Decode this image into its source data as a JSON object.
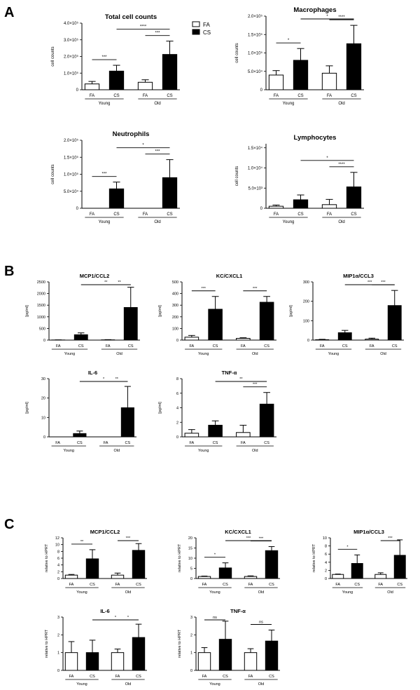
{
  "panels": [
    {
      "letter": "A"
    },
    {
      "letter": "B"
    },
    {
      "letter": "C"
    }
  ],
  "legend": {
    "items": [
      {
        "label": "FA",
        "fill": "#ffffff"
      },
      {
        "label": "CS",
        "fill": "#000000"
      }
    ]
  },
  "colors": {
    "fa": "#ffffff",
    "cs": "#000000",
    "axis": "#000000"
  },
  "chart_data": [
    {
      "type": "bar",
      "panel": "A",
      "title": "Total cell counts",
      "ylabel": "cell counts",
      "categories": [
        "FA",
        "CS",
        "FA",
        "CS"
      ],
      "groups": [
        "Young",
        "Old"
      ],
      "ylim": [
        0,
        400000
      ],
      "ticks": [
        0,
        100000,
        200000,
        300000,
        400000
      ],
      "tick_labels": [
        "0",
        "1.0×10⁵",
        "2.0×10⁵",
        "3.0×10⁵",
        "4.0×10⁵"
      ],
      "values": [
        35000,
        112000,
        45000,
        212000
      ],
      "errors": [
        15000,
        35000,
        15000,
        80000
      ],
      "brackets": [
        {
          "a": 0,
          "b": 1,
          "label": "***"
        },
        {
          "a": 1,
          "b": 3,
          "label": "****"
        },
        {
          "a": 2,
          "b": 3,
          "label": "***"
        }
      ]
    },
    {
      "type": "bar",
      "panel": "A",
      "title": "Macrophages",
      "ylabel": "cell counts",
      "categories": [
        "FA",
        "CS",
        "FA",
        "CS"
      ],
      "groups": [
        "Young",
        "Old"
      ],
      "ylim": [
        0,
        200000
      ],
      "ticks": [
        0,
        50000,
        100000,
        150000,
        200000
      ],
      "tick_labels": [
        "0",
        "5.0×10⁴",
        "1.0×10⁵",
        "1.5×10⁵",
        "2.0×10⁵"
      ],
      "values": [
        40000,
        80000,
        45000,
        125000
      ],
      "errors": [
        12000,
        32000,
        20000,
        50000
      ],
      "brackets": [
        {
          "a": 0,
          "b": 1,
          "label": "*"
        },
        {
          "a": 1,
          "b": 3,
          "label": "*"
        },
        {
          "a": 2,
          "b": 3,
          "label": "****"
        }
      ]
    },
    {
      "type": "bar",
      "panel": "A",
      "title": "Neutrophils",
      "ylabel": "cell counts",
      "categories": [
        "FA",
        "CS",
        "FA",
        "CS"
      ],
      "groups": [
        "Young",
        "Old"
      ],
      "ylim": [
        0,
        200000
      ],
      "ticks": [
        0,
        50000,
        100000,
        150000,
        200000
      ],
      "tick_labels": [
        "0",
        "5.0×10⁴",
        "1.0×10⁵",
        "1.5×10⁵",
        "2.0×10⁵"
      ],
      "values": [
        0,
        57000,
        0,
        90000
      ],
      "errors": [
        0,
        20000,
        0,
        53000
      ],
      "brackets": [
        {
          "a": 0,
          "b": 1,
          "label": "***"
        },
        {
          "a": 1,
          "b": 3,
          "label": "*"
        },
        {
          "a": 2,
          "b": 3,
          "label": "***"
        }
      ]
    },
    {
      "type": "bar",
      "panel": "A",
      "title": "Lymphocytes",
      "ylabel": "cell counts",
      "categories": [
        "FA",
        "CS",
        "FA",
        "CS"
      ],
      "groups": [
        "Young",
        "Old"
      ],
      "ylim": [
        0,
        16000
      ],
      "ticks": [
        0,
        5000,
        10000,
        15000
      ],
      "tick_labels": [
        "0",
        "5.0×10³",
        "1.0×10⁴",
        "1.5×10⁴"
      ],
      "values": [
        500,
        2100,
        900,
        5300
      ],
      "errors": [
        300,
        1200,
        1300,
        3600
      ],
      "brackets": [
        {
          "a": 1,
          "b": 3,
          "label": "*"
        },
        {
          "a": 2,
          "b": 3,
          "label": "****"
        }
      ]
    },
    {
      "type": "bar",
      "panel": "B",
      "title": "MCP1/CCL2",
      "ylabel": "[pg/ml]",
      "categories": [
        "FA",
        "CS",
        "FA",
        "CS"
      ],
      "groups": [
        "Young",
        "Old"
      ],
      "ylim": [
        0,
        2500
      ],
      "ticks": [
        0,
        500,
        1000,
        1500,
        2000,
        2500
      ],
      "tick_labels": [
        "0",
        "500",
        "1000",
        "1500",
        "2000",
        "2500"
      ],
      "values": [
        5,
        230,
        10,
        1400
      ],
      "errors": [
        5,
        80,
        10,
        870
      ],
      "brackets": [
        {
          "a": 1,
          "b": 3,
          "label": "**"
        },
        {
          "a": 2,
          "b": 3,
          "label": "**"
        }
      ]
    },
    {
      "type": "bar",
      "panel": "B",
      "title": "KC/CXCL1",
      "ylabel": "[pg/ml]",
      "categories": [
        "FA",
        "CS",
        "FA",
        "CS"
      ],
      "groups": [
        "Young",
        "Old"
      ],
      "ylim": [
        0,
        500
      ],
      "ticks": [
        0,
        100,
        200,
        300,
        400,
        500
      ],
      "tick_labels": [
        "0",
        "100",
        "200",
        "300",
        "400",
        "500"
      ],
      "values": [
        25,
        265,
        15,
        325
      ],
      "errors": [
        15,
        110,
        5,
        50
      ],
      "brackets": [
        {
          "a": 0,
          "b": 1,
          "label": "***"
        },
        {
          "a": 2,
          "b": 3,
          "label": "***"
        }
      ]
    },
    {
      "type": "bar",
      "panel": "B",
      "title": "MIP1α/CCL3",
      "ylabel": "[pg/ml]",
      "categories": [
        "FA",
        "CS",
        "FA",
        "CS"
      ],
      "groups": [
        "Young",
        "Old"
      ],
      "ylim": [
        0,
        300
      ],
      "ticks": [
        0,
        100,
        200,
        300
      ],
      "tick_labels": [
        "0",
        "100",
        "200",
        "300"
      ],
      "values": [
        2,
        38,
        5,
        178
      ],
      "errors": [
        2,
        12,
        5,
        78
      ],
      "brackets": [
        {
          "a": 1,
          "b": 3,
          "label": "***"
        },
        {
          "a": 2,
          "b": 3,
          "label": "***"
        }
      ]
    },
    {
      "type": "bar",
      "panel": "B",
      "title": "IL-6",
      "ylabel": "[pg/ml]",
      "categories": [
        "FA",
        "CS",
        "FA",
        "CS"
      ],
      "groups": [
        "Young",
        "Old"
      ],
      "ylim": [
        0,
        30
      ],
      "ticks": [
        0,
        10,
        20,
        30
      ],
      "tick_labels": [
        "0",
        "10",
        "20",
        "30"
      ],
      "values": [
        0,
        1.7,
        0,
        15
      ],
      "errors": [
        0,
        1.3,
        0,
        11
      ],
      "brackets": [
        {
          "a": 1,
          "b": 3,
          "label": "*"
        },
        {
          "a": 2,
          "b": 3,
          "label": "**"
        }
      ]
    },
    {
      "type": "bar",
      "panel": "B",
      "title": "TNF-α",
      "ylabel": "[pg/ml]",
      "categories": [
        "FA",
        "CS",
        "FA",
        "CS"
      ],
      "groups": [
        "Young",
        "Old"
      ],
      "ylim": [
        0,
        8
      ],
      "ticks": [
        0,
        2,
        4,
        6,
        8
      ],
      "tick_labels": [
        "0",
        "2",
        "4",
        "6",
        "8"
      ],
      "values": [
        0.5,
        1.6,
        0.6,
        4.5
      ],
      "errors": [
        0.5,
        0.6,
        1.0,
        1.6
      ],
      "brackets": [
        {
          "a": 1,
          "b": 3,
          "label": "**"
        },
        {
          "a": 2,
          "b": 3,
          "label": "***"
        }
      ]
    },
    {
      "type": "bar",
      "panel": "C",
      "title": "MCP1/CCL2",
      "ylabel": "relative to HPRT",
      "categories": [
        "FA",
        "CS",
        "FA",
        "CS"
      ],
      "groups": [
        "Young",
        "Old"
      ],
      "ylim": [
        0,
        12
      ],
      "ticks": [
        0,
        2,
        4,
        6,
        8,
        10,
        12
      ],
      "tick_labels": [
        "0",
        "2",
        "4",
        "6",
        "8",
        "10",
        "12"
      ],
      "values": [
        1,
        5.8,
        1,
        8.3
      ],
      "errors": [
        0.2,
        2.7,
        0.6,
        2.0
      ],
      "brackets": [
        {
          "a": 0,
          "b": 1,
          "label": "**"
        },
        {
          "a": 2,
          "b": 3,
          "label": "***"
        }
      ]
    },
    {
      "type": "bar",
      "panel": "C",
      "title": "KC/CXCL1",
      "ylabel": "relative to HPRT",
      "categories": [
        "FA",
        "CS",
        "FA",
        "CS"
      ],
      "groups": [
        "Young",
        "Old"
      ],
      "ylim": [
        0,
        20
      ],
      "ticks": [
        0,
        5,
        10,
        15,
        20
      ],
      "tick_labels": [
        "0",
        "5",
        "10",
        "15",
        "20"
      ],
      "values": [
        1,
        5.2,
        1,
        13.7
      ],
      "errors": [
        0.2,
        2.5,
        0.3,
        2.0
      ],
      "brackets": [
        {
          "a": 0,
          "b": 1,
          "label": "*"
        },
        {
          "a": 1,
          "b": 3,
          "label": "***"
        },
        {
          "a": 2,
          "b": 3,
          "label": "***"
        }
      ]
    },
    {
      "type": "bar",
      "panel": "C",
      "title": "MIP1α/CCL3",
      "ylabel": "relative to HPRT",
      "categories": [
        "FA",
        "CS",
        "FA",
        "CS"
      ],
      "groups": [
        "Young",
        "Old"
      ],
      "ylim": [
        0,
        10
      ],
      "ticks": [
        0,
        2,
        4,
        6,
        8,
        10
      ],
      "tick_labels": [
        "0",
        "2",
        "4",
        "6",
        "8",
        "10"
      ],
      "values": [
        1,
        3.7,
        1,
        5.7
      ],
      "errors": [
        0.1,
        2.1,
        0.4,
        3.8
      ],
      "brackets": [
        {
          "a": 0,
          "b": 1,
          "label": "*"
        },
        {
          "a": 2,
          "b": 3,
          "label": "***"
        }
      ]
    },
    {
      "type": "bar",
      "panel": "C",
      "title": "IL-6",
      "ylabel": "relative to HPRT",
      "categories": [
        "FA",
        "CS",
        "FA",
        "CS"
      ],
      "groups": [
        "Young",
        "Old"
      ],
      "ylim": [
        0,
        3
      ],
      "ticks": [
        0,
        1,
        2,
        3
      ],
      "tick_labels": [
        "0",
        "1",
        "2",
        "3"
      ],
      "values": [
        1,
        1,
        1,
        1.85
      ],
      "errors": [
        0.62,
        0.7,
        0.2,
        0.75
      ],
      "brackets": [
        {
          "a": 1,
          "b": 3,
          "label": "*"
        },
        {
          "a": 2,
          "b": 3,
          "label": "*"
        }
      ]
    },
    {
      "type": "bar",
      "panel": "C",
      "title": "TNF-α",
      "ylabel": "relative to HPRT",
      "categories": [
        "FA",
        "CS",
        "FA",
        "CS"
      ],
      "groups": [
        "Young",
        "Old"
      ],
      "ylim": [
        0,
        3
      ],
      "ticks": [
        0,
        1,
        2,
        3
      ],
      "tick_labels": [
        "0",
        "1",
        "2",
        "3"
      ],
      "values": [
        1,
        1.75,
        1,
        1.65
      ],
      "errors": [
        0.28,
        1.02,
        0.22,
        0.62
      ],
      "brackets": [
        {
          "a": 0,
          "b": 1,
          "label": "ns"
        },
        {
          "a": 2,
          "b": 3,
          "label": "ns"
        }
      ]
    }
  ]
}
